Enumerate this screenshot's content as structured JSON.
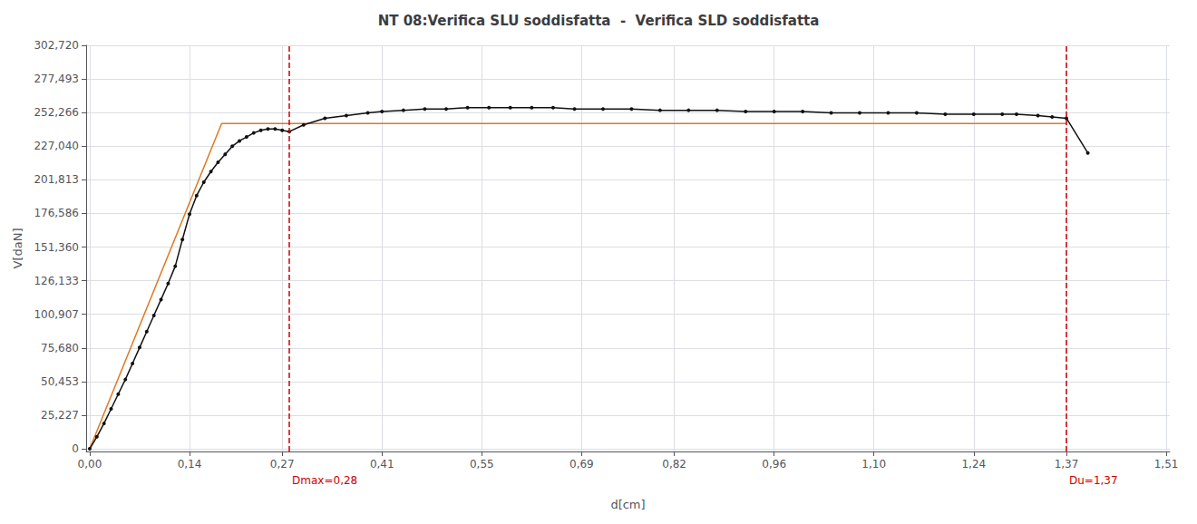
{
  "chart_data": {
    "type": "line",
    "title": "NT 08:Verifica SLU soddisfatta  -  Verifica SLD soddisfatta",
    "xlabel": "d[cm]",
    "ylabel": "V[daN]",
    "xlim": [
      -0.005,
      1.515
    ],
    "ylim": [
      -2,
      302.72
    ],
    "xticks": [
      {
        "value": 0.0,
        "label": "0,00"
      },
      {
        "value": 0.14,
        "label": "0,14"
      },
      {
        "value": 0.27,
        "label": "0,27"
      },
      {
        "value": 0.41,
        "label": "0,41"
      },
      {
        "value": 0.55,
        "label": "0,55"
      },
      {
        "value": 0.69,
        "label": "0,69"
      },
      {
        "value": 0.82,
        "label": "0,82"
      },
      {
        "value": 0.96,
        "label": "0,96"
      },
      {
        "value": 1.1,
        "label": "1,10"
      },
      {
        "value": 1.24,
        "label": "1,24"
      },
      {
        "value": 1.37,
        "label": "1,37"
      },
      {
        "value": 1.51,
        "label": "1,51"
      }
    ],
    "yticks": [
      0,
      {
        "value": 25.227,
        "label": "25,227"
      },
      {
        "value": 50.453,
        "label": "50,453"
      },
      {
        "value": 75.68,
        "label": "75,680"
      },
      {
        "value": 100.907,
        "label": "100,907"
      },
      {
        "value": 126.133,
        "label": "126,133"
      },
      {
        "value": 151.36,
        "label": "151,360"
      },
      {
        "value": 176.586,
        "label": "176,586"
      },
      {
        "value": 201.813,
        "label": "201,813"
      },
      {
        "value": 227.04,
        "label": "227,040"
      },
      {
        "value": 252.266,
        "label": "252,266"
      },
      {
        "value": 277.493,
        "label": "277,493"
      },
      {
        "value": 302.72,
        "label": "302,720"
      }
    ],
    "grid": true,
    "series": [
      {
        "color": "#e07820",
        "line_style": "solid",
        "x": [
          0.0,
          0.185,
          1.37
        ],
        "values": [
          0.0,
          244.0,
          244.0
        ]
      },
      {
        "color": "#111111",
        "line_style": "solid",
        "marker": "circle",
        "x": [
          0.0,
          0.01,
          0.02,
          0.03,
          0.04,
          0.05,
          0.06,
          0.07,
          0.08,
          0.09,
          0.1,
          0.11,
          0.12,
          0.13,
          0.14,
          0.15,
          0.16,
          0.17,
          0.18,
          0.19,
          0.2,
          0.21,
          0.22,
          0.23,
          0.24,
          0.25,
          0.26,
          0.27,
          0.28,
          0.3,
          0.33,
          0.36,
          0.39,
          0.41,
          0.44,
          0.47,
          0.5,
          0.53,
          0.56,
          0.59,
          0.62,
          0.65,
          0.68,
          0.72,
          0.76,
          0.8,
          0.84,
          0.88,
          0.92,
          0.96,
          1.0,
          1.04,
          1.08,
          1.12,
          1.16,
          1.2,
          1.24,
          1.28,
          1.3,
          1.33,
          1.35,
          1.37,
          1.4
        ],
        "values": [
          0,
          9,
          19,
          30,
          41,
          52,
          64,
          76,
          88,
          100,
          112,
          124,
          137,
          157,
          176,
          190,
          200,
          208,
          215,
          221,
          227,
          231,
          234,
          237,
          239,
          240,
          240,
          239,
          238,
          243,
          248,
          250,
          252,
          253,
          254,
          255,
          255,
          256,
          256,
          256,
          256,
          256,
          255,
          255,
          255,
          254,
          254,
          254,
          253,
          253,
          253,
          252,
          252,
          252,
          252,
          251,
          251,
          251,
          251,
          250,
          249,
          248,
          222
        ]
      }
    ],
    "annotations": [
      {
        "x": 0.28,
        "text": "Dmax=0,28",
        "color": "#cc0000",
        "line_style": "dashed"
      },
      {
        "x": 1.37,
        "text": "Du=1,37",
        "color": "#cc0000",
        "line_style": "dashed"
      }
    ]
  }
}
